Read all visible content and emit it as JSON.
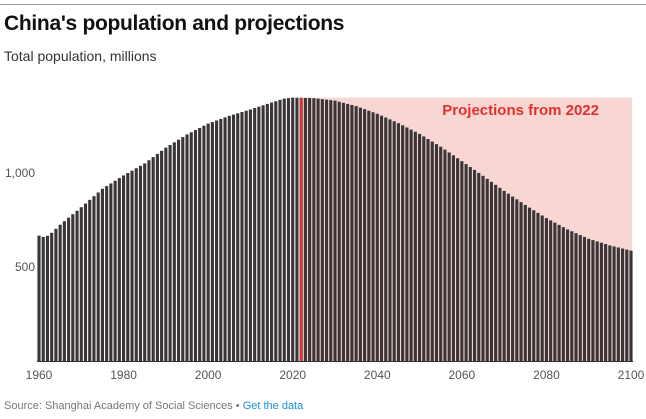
{
  "header": {
    "title": "China's population and projections",
    "subtitle": "Total population, millions"
  },
  "footer": {
    "source": "Source: Shanghai Academy of Social Sciences",
    "separator": "•",
    "link_label": "Get the data"
  },
  "colors": {
    "bar": "#3a3536",
    "projection_band": "#f8d6d4",
    "marker_line": "#e0312f",
    "label": "#e0312f",
    "axis": "#333333"
  },
  "chart_data": {
    "type": "bar",
    "title": "China's population and projections",
    "subtitle": "Total population, millions",
    "xlabel": "",
    "ylabel": "",
    "xlim": [
      1960,
      2100
    ],
    "ylim": [
      0,
      1400
    ],
    "x_ticks": [
      1960,
      1980,
      2000,
      2020,
      2040,
      2060,
      2080,
      2100
    ],
    "y_ticks": [
      {
        "value": 500,
        "label": "500"
      },
      {
        "value": 1000,
        "label": "1,000"
      }
    ],
    "grid": false,
    "projection": {
      "start_year": 2022,
      "label": "Projections from 2022"
    },
    "series": [
      {
        "anchors": {
          "x": [
            1960,
            1961,
            1962,
            1963,
            1965,
            1970,
            1975,
            1980,
            1985,
            1990,
            1995,
            2000,
            2005,
            2010,
            2015,
            2018,
            2020,
            2022,
            2025,
            2030,
            2035,
            2040,
            2045,
            2050,
            2055,
            2060,
            2065,
            2070,
            2075,
            2080,
            2085,
            2090,
            2095,
            2100
          ],
          "values": [
            667,
            660,
            666,
            682,
            725,
            818,
            916,
            987,
            1051,
            1135,
            1205,
            1263,
            1304,
            1338,
            1375,
            1396,
            1401,
            1400,
            1398,
            1385,
            1356,
            1315,
            1265,
            1208,
            1140,
            1063,
            985,
            905,
            830,
            760,
            700,
            650,
            615,
            587
          ]
        }
      }
    ]
  }
}
